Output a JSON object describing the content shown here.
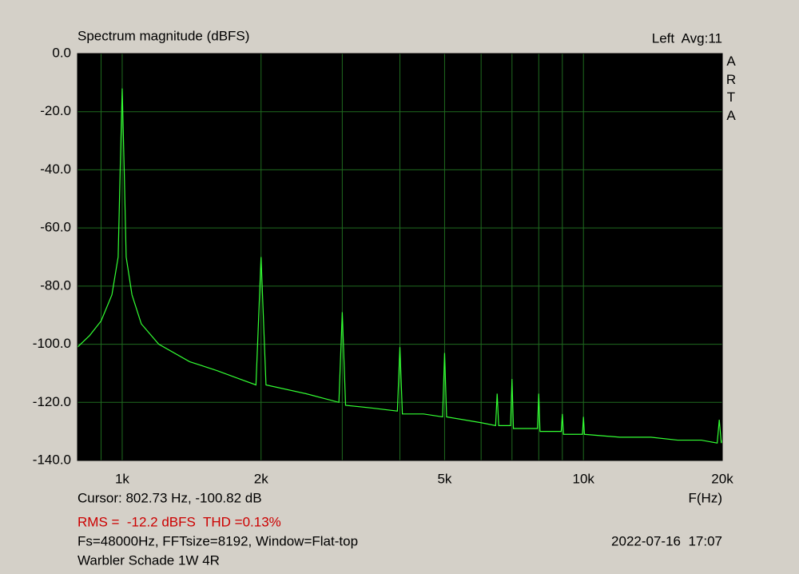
{
  "chart_data": {
    "type": "line",
    "title": "Spectrum magnitude (dBFS)",
    "channel_label": "Left  Avg:11",
    "side_label": "ARTA",
    "xlabel": "F(Hz)",
    "cursor_text": "Cursor: 802.73 Hz, -100.82 dB",
    "rms_text": "RMS =  -12.2 dBFS  THD =0.13%",
    "settings_text": "Fs=48000Hz, FFTsize=8192, Window=Flat-top",
    "timestamp": "2022-07-16  17:07",
    "note": "Warbler Schade 1W 4R",
    "xscale": "log",
    "grid": true,
    "color": "#33ff33",
    "xlim": [
      800,
      20000
    ],
    "ylim": [
      -140,
      0
    ],
    "xticks": [
      {
        "value": 1000,
        "label": "1k"
      },
      {
        "value": 2000,
        "label": "2k"
      },
      {
        "value": 5000,
        "label": "5k"
      },
      {
        "value": 10000,
        "label": "10k"
      },
      {
        "value": 20000,
        "label": "20k"
      }
    ],
    "xminorticks": [
      900,
      3000,
      4000,
      6000,
      7000,
      8000,
      9000
    ],
    "yticks": [
      {
        "value": 0,
        "label": "0.0"
      },
      {
        "value": -20,
        "label": "-20.0"
      },
      {
        "value": -40,
        "label": "-40.0"
      },
      {
        "value": -60,
        "label": "-60.0"
      },
      {
        "value": -80,
        "label": "-80.0"
      },
      {
        "value": -100,
        "label": "-100.0"
      },
      {
        "value": -120,
        "label": "-120.0"
      },
      {
        "value": -140,
        "label": "-140.0"
      }
    ],
    "x": [
      800,
      850,
      900,
      950,
      980,
      990,
      1000,
      1010,
      1020,
      1050,
      1100,
      1200,
      1400,
      1600,
      1800,
      1950,
      2000,
      2050,
      2500,
      2950,
      3000,
      3050,
      3500,
      3950,
      4000,
      4050,
      4500,
      4950,
      5000,
      5050,
      6000,
      6450,
      6500,
      6550,
      6950,
      7000,
      7050,
      7950,
      8000,
      8050,
      8950,
      9000,
      9050,
      9950,
      10000,
      10050,
      12000,
      14000,
      16000,
      18000,
      19500,
      19700,
      19900,
      20000
    ],
    "values": [
      -101,
      -97,
      -92,
      -83,
      -70,
      -40,
      -12,
      -40,
      -70,
      -83,
      -93,
      -100,
      -106,
      -109,
      -112,
      -114,
      -70,
      -114,
      -117,
      -120,
      -89,
      -121,
      -122,
      -123,
      -101,
      -124,
      -124,
      -125,
      -103,
      -125,
      -127,
      -128,
      -117,
      -128,
      -128,
      -112,
      -129,
      -129,
      -117,
      -130,
      -130,
      -124,
      -131,
      -131,
      -125,
      -131,
      -132,
      -132,
      -133,
      -133,
      -134,
      -126,
      -134,
      -133
    ]
  }
}
